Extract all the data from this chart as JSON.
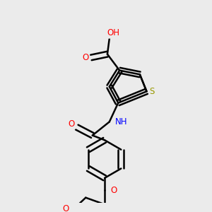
{
  "bg_color": "#ebebeb",
  "bond_color": "#000000",
  "bond_width": 1.8,
  "atom_colors": {
    "O": "#ff0000",
    "N": "#0000ff",
    "S": "#999900",
    "C": "#000000",
    "H": "#555555"
  },
  "font_size": 8.5,
  "fig_size": [
    3.0,
    3.0
  ],
  "dpi": 100,
  "xlim": [
    0,
    300
  ],
  "ylim": [
    0,
    300
  ]
}
